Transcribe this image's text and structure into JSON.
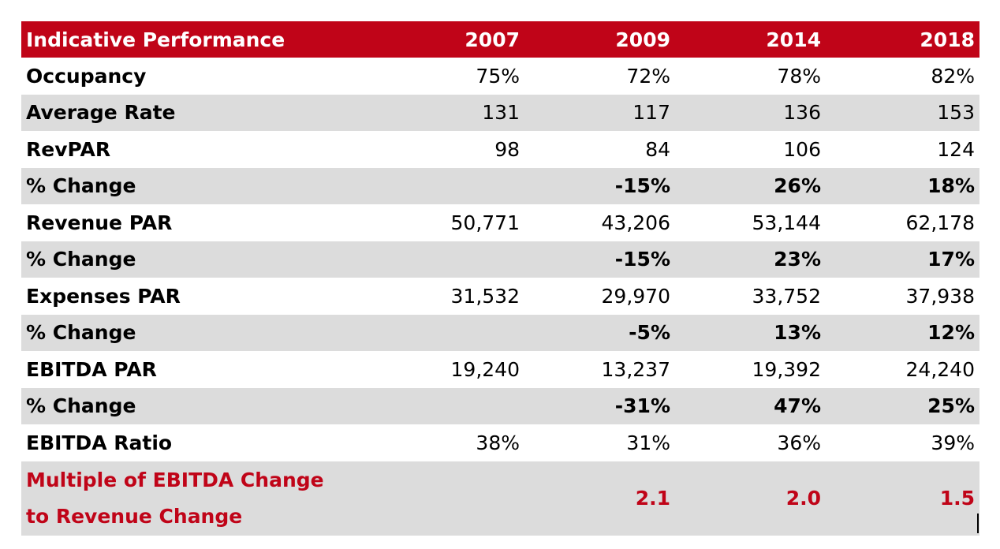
{
  "chart_data": {
    "type": "table",
    "header": [
      "Indicative Performance",
      "2007",
      "2009",
      "2014",
      "2018"
    ],
    "rows": [
      {
        "label": "Occupancy",
        "values": [
          "75%",
          "72%",
          "78%",
          "82%"
        ],
        "shaded": false,
        "bold_values": false
      },
      {
        "label": "Average Rate",
        "values": [
          "131",
          "117",
          "136",
          "153"
        ],
        "shaded": true,
        "bold_values": false
      },
      {
        "label": "RevPAR",
        "values": [
          "98",
          "84",
          "106",
          "124"
        ],
        "shaded": false,
        "bold_values": false
      },
      {
        "label": "% Change",
        "values": [
          "",
          "-15%",
          "26%",
          "18%"
        ],
        "shaded": true,
        "bold_values": true
      },
      {
        "label": "Revenue PAR",
        "values": [
          "50,771",
          "43,206",
          "53,144",
          "62,178"
        ],
        "shaded": false,
        "bold_values": false
      },
      {
        "label": "% Change",
        "values": [
          "",
          "-15%",
          "23%",
          "17%"
        ],
        "shaded": true,
        "bold_values": true
      },
      {
        "label": "Expenses PAR",
        "values": [
          "31,532",
          "29,970",
          "33,752",
          "37,938"
        ],
        "shaded": false,
        "bold_values": false
      },
      {
        "label": "% Change",
        "values": [
          "",
          "-5%",
          "13%",
          "12%"
        ],
        "shaded": true,
        "bold_values": true
      },
      {
        "label": "EBITDA PAR",
        "values": [
          "19,240",
          "13,237",
          "19,392",
          "24,240"
        ],
        "shaded": false,
        "bold_values": false
      },
      {
        "label": "% Change",
        "values": [
          "",
          "-31%",
          "47%",
          "25%"
        ],
        "shaded": true,
        "bold_values": true
      },
      {
        "label": "EBITDA Ratio",
        "values": [
          "38%",
          "31%",
          "36%",
          "39%"
        ],
        "shaded": false,
        "bold_values": false
      }
    ],
    "final_row": {
      "label_lines": [
        "Multiple of EBITDA Change",
        "to Revenue Change"
      ],
      "values": [
        "",
        "2.1",
        "2.0",
        "1.5"
      ]
    },
    "colors": {
      "header_bg": "#c00418",
      "header_text": "#ffffff",
      "shade": "#dcdcdc",
      "highlight_text": "#c00418"
    }
  }
}
